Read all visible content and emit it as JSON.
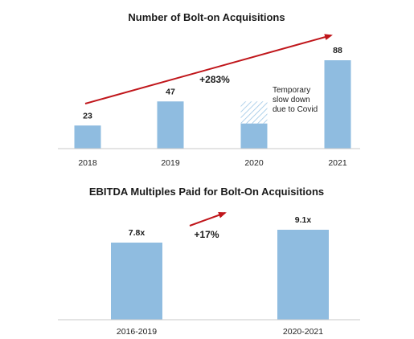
{
  "colors": {
    "bar": "#8fbce0",
    "arrow": "#c0161b",
    "axis": "#c8c8c8",
    "hatch": "#9cc6e6"
  },
  "chart_data": [
    {
      "type": "bar",
      "title": "Number of Bolt-on Acquisitions",
      "categories": [
        "2018",
        "2019",
        "2020",
        "2021"
      ],
      "values": [
        23,
        47,
        47,
        88
      ],
      "data_labels": [
        "23",
        "47",
        "",
        "88"
      ],
      "growth_label": "+283%",
      "annotation": {
        "category": "2020",
        "lines": [
          "Temporary",
          "slow down",
          "due to Covid"
        ],
        "hatched_gap_to": 47
      },
      "solid_2020_value": 25,
      "ylim": [
        0,
        95
      ],
      "grid": false,
      "legend": "none"
    },
    {
      "type": "bar",
      "title": "EBITDA Multiples Paid for Bolt-On Acquisitions",
      "categories": [
        "2016-2019",
        "2020-2021"
      ],
      "values": [
        7.8,
        9.1
      ],
      "data_labels": [
        "7.8x",
        "9.1x"
      ],
      "growth_label": "+17%",
      "ylim": [
        0,
        9.6
      ],
      "grid": false,
      "legend": "none"
    }
  ]
}
